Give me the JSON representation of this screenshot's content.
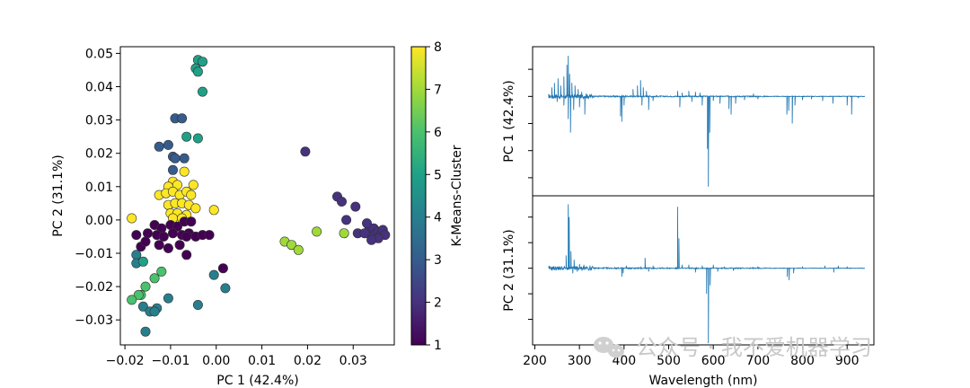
{
  "chart_data": [
    {
      "type": "scatter",
      "title": "",
      "xlabel": "PC 1 (42.4%)",
      "ylabel": "PC 2 (31.1%)",
      "xlim": [
        -0.021,
        0.039
      ],
      "ylim": [
        -0.0375,
        0.052
      ],
      "xticks": [
        -0.02,
        -0.01,
        0.0,
        0.01,
        0.02,
        0.03
      ],
      "xtick_labels": [
        "−0.02",
        "−0.01",
        "0.00",
        "0.01",
        "0.02",
        "0.03"
      ],
      "yticks": [
        -0.03,
        -0.02,
        -0.01,
        0.0,
        0.01,
        0.02,
        0.03,
        0.04,
        0.05
      ],
      "ytick_labels": [
        "−0.03",
        "−0.02",
        "−0.01",
        "0.00",
        "0.01",
        "0.02",
        "0.03",
        "0.04",
        "0.05"
      ],
      "grid": false,
      "colorbar": {
        "label": "K-Means-Cluster",
        "range": [
          1,
          8
        ],
        "colormap": "viridis",
        "ticks": [
          1,
          2,
          3,
          4,
          5,
          6,
          7,
          8
        ],
        "tick_labels": [
          "1",
          "2",
          "3",
          "4",
          "5",
          "6",
          "7",
          "8"
        ]
      },
      "points": [
        {
          "x": -0.004,
          "y": 0.048,
          "c": 5
        },
        {
          "x": -0.003,
          "y": 0.0475,
          "c": 5
        },
        {
          "x": -0.0045,
          "y": 0.0455,
          "c": 5
        },
        {
          "x": -0.004,
          "y": 0.0445,
          "c": 5
        },
        {
          "x": -0.003,
          "y": 0.0385,
          "c": 5
        },
        {
          "x": -0.0065,
          "y": 0.025,
          "c": 5
        },
        {
          "x": -0.004,
          "y": 0.0245,
          "c": 5
        },
        {
          "x": -0.009,
          "y": 0.0305,
          "c": 3
        },
        {
          "x": -0.0075,
          "y": 0.0305,
          "c": 3
        },
        {
          "x": -0.0125,
          "y": 0.022,
          "c": 3
        },
        {
          "x": -0.0105,
          "y": 0.0225,
          "c": 3
        },
        {
          "x": -0.0095,
          "y": 0.019,
          "c": 3
        },
        {
          "x": -0.009,
          "y": 0.0185,
          "c": 3
        },
        {
          "x": -0.007,
          "y": 0.0185,
          "c": 3
        },
        {
          "x": -0.0095,
          "y": 0.015,
          "c": 3
        },
        {
          "x": -0.0095,
          "y": 0.0115,
          "c": 8
        },
        {
          "x": -0.007,
          "y": 0.0145,
          "c": 8
        },
        {
          "x": -0.0105,
          "y": 0.01,
          "c": 8
        },
        {
          "x": -0.0085,
          "y": 0.0105,
          "c": 8
        },
        {
          "x": -0.005,
          "y": 0.0105,
          "c": 8
        },
        {
          "x": -0.0125,
          "y": 0.0075,
          "c": 8
        },
        {
          "x": -0.011,
          "y": 0.008,
          "c": 8
        },
        {
          "x": -0.0095,
          "y": 0.0085,
          "c": 8
        },
        {
          "x": -0.008,
          "y": 0.0075,
          "c": 8
        },
        {
          "x": -0.0065,
          "y": 0.0085,
          "c": 8
        },
        {
          "x": -0.0055,
          "y": 0.0075,
          "c": 8
        },
        {
          "x": -0.0105,
          "y": 0.0045,
          "c": 8
        },
        {
          "x": -0.009,
          "y": 0.005,
          "c": 8
        },
        {
          "x": -0.0075,
          "y": 0.005,
          "c": 8
        },
        {
          "x": -0.006,
          "y": 0.0045,
          "c": 8
        },
        {
          "x": -0.0045,
          "y": 0.0035,
          "c": 8
        },
        {
          "x": -0.01,
          "y": 0.002,
          "c": 8
        },
        {
          "x": -0.0085,
          "y": 0.002,
          "c": 8
        },
        {
          "x": -0.0065,
          "y": 0.0015,
          "c": 8
        },
        {
          "x": -0.0095,
          "y": 0.0005,
          "c": 8
        },
        {
          "x": -0.0075,
          "y": 0.0005,
          "c": 8
        },
        {
          "x": -0.0005,
          "y": 0.003,
          "c": 8
        },
        {
          "x": -0.0185,
          "y": 0.0005,
          "c": 8
        },
        {
          "x": -0.0135,
          "y": -0.0015,
          "c": 1
        },
        {
          "x": -0.012,
          "y": -0.0025,
          "c": 1
        },
        {
          "x": -0.01,
          "y": -0.0015,
          "c": 1
        },
        {
          "x": -0.0085,
          "y": -0.002,
          "c": 1
        },
        {
          "x": -0.007,
          "y": -0.0005,
          "c": 1
        },
        {
          "x": -0.0055,
          "y": -0.0005,
          "c": 1
        },
        {
          "x": -0.015,
          "y": -0.004,
          "c": 1
        },
        {
          "x": -0.013,
          "y": -0.0045,
          "c": 1
        },
        {
          "x": -0.0115,
          "y": -0.005,
          "c": 1
        },
        {
          "x": -0.0095,
          "y": -0.004,
          "c": 1
        },
        {
          "x": -0.0075,
          "y": -0.0045,
          "c": 1
        },
        {
          "x": -0.006,
          "y": -0.004,
          "c": 1
        },
        {
          "x": -0.0045,
          "y": -0.005,
          "c": 1
        },
        {
          "x": -0.003,
          "y": -0.0045,
          "c": 1
        },
        {
          "x": -0.0015,
          "y": -0.0045,
          "c": 1
        },
        {
          "x": -0.0065,
          "y": -0.005,
          "c": 1
        },
        {
          "x": -0.0175,
          "y": -0.0045,
          "c": 1
        },
        {
          "x": -0.0165,
          "y": -0.008,
          "c": 1
        },
        {
          "x": -0.0155,
          "y": -0.0065,
          "c": 1
        },
        {
          "x": -0.0125,
          "y": -0.0075,
          "c": 1
        },
        {
          "x": -0.0105,
          "y": -0.0085,
          "c": 1
        },
        {
          "x": -0.008,
          "y": -0.0075,
          "c": 1
        },
        {
          "x": -0.0065,
          "y": -0.0105,
          "c": 1
        },
        {
          "x": 0.0015,
          "y": -0.0145,
          "c": 1
        },
        {
          "x": -0.0175,
          "y": -0.0105,
          "c": 4
        },
        {
          "x": -0.0175,
          "y": -0.013,
          "c": 4
        },
        {
          "x": -0.016,
          "y": -0.0125,
          "c": 5
        },
        {
          "x": -0.0005,
          "y": -0.0165,
          "c": 4
        },
        {
          "x": 0.002,
          "y": -0.0205,
          "c": 4
        },
        {
          "x": -0.004,
          "y": -0.0255,
          "c": 4
        },
        {
          "x": -0.0105,
          "y": -0.0235,
          "c": 4
        },
        {
          "x": -0.016,
          "y": -0.026,
          "c": 4
        },
        {
          "x": -0.0145,
          "y": -0.0275,
          "c": 4
        },
        {
          "x": -0.013,
          "y": -0.0265,
          "c": 4
        },
        {
          "x": -0.0135,
          "y": -0.0275,
          "c": 4
        },
        {
          "x": -0.0155,
          "y": -0.0335,
          "c": 4
        },
        {
          "x": -0.0135,
          "y": -0.0175,
          "c": 6
        },
        {
          "x": -0.012,
          "y": -0.0155,
          "c": 6
        },
        {
          "x": -0.0155,
          "y": -0.02,
          "c": 6
        },
        {
          "x": -0.0165,
          "y": -0.0225,
          "c": 6
        },
        {
          "x": -0.017,
          "y": -0.0225,
          "c": 6
        },
        {
          "x": -0.0185,
          "y": -0.024,
          "c": 6
        },
        {
          "x": 0.015,
          "y": -0.0065,
          "c": 7
        },
        {
          "x": 0.0165,
          "y": -0.0075,
          "c": 7
        },
        {
          "x": 0.018,
          "y": -0.009,
          "c": 7
        },
        {
          "x": 0.022,
          "y": -0.0035,
          "c": 7
        },
        {
          "x": 0.028,
          "y": -0.004,
          "c": 7
        },
        {
          "x": 0.0195,
          "y": 0.0205,
          "c": 2
        },
        {
          "x": 0.0265,
          "y": 0.007,
          "c": 2
        },
        {
          "x": 0.0275,
          "y": 0.0055,
          "c": 2
        },
        {
          "x": 0.0305,
          "y": 0.004,
          "c": 2
        },
        {
          "x": 0.0285,
          "y": 0.0,
          "c": 2
        },
        {
          "x": 0.031,
          "y": -0.004,
          "c": 2
        },
        {
          "x": 0.0335,
          "y": -0.003,
          "c": 2
        },
        {
          "x": 0.034,
          "y": -0.005,
          "c": 2
        },
        {
          "x": 0.0345,
          "y": -0.0025,
          "c": 2
        },
        {
          "x": 0.035,
          "y": -0.004,
          "c": 2
        },
        {
          "x": 0.0355,
          "y": -0.0035,
          "c": 2
        },
        {
          "x": 0.036,
          "y": -0.0045,
          "c": 2
        },
        {
          "x": 0.0365,
          "y": -0.003,
          "c": 2
        },
        {
          "x": 0.037,
          "y": -0.0045,
          "c": 2
        },
        {
          "x": 0.0355,
          "y": -0.0055,
          "c": 2
        },
        {
          "x": 0.034,
          "y": -0.006,
          "c": 2
        },
        {
          "x": 0.0325,
          "y": -0.004,
          "c": 2
        },
        {
          "x": 0.033,
          "y": -0.001,
          "c": 2
        }
      ]
    },
    {
      "type": "line",
      "title": "",
      "color": "#1f77b4",
      "xlabel": "Wavelength (nm)",
      "xlim": [
        195,
        960
      ],
      "xticks": [
        200,
        300,
        400,
        500,
        600,
        700,
        800,
        900
      ],
      "xtick_labels": [
        "200",
        "300",
        "400",
        "500",
        "600",
        "700",
        "800",
        "900"
      ],
      "series": [
        {
          "ylabel": "PC 1 (42.4%)",
          "ylim": [
            -0.11,
            0.055
          ],
          "yticks": [
            -0.09,
            -0.06,
            -0.03,
            0.0,
            0.03
          ],
          "baseline": 0.0,
          "x_start": 230,
          "x_end": 940,
          "peaks": [
            {
              "x": 238,
              "y": 0.01
            },
            {
              "x": 244,
              "y": 0.015
            },
            {
              "x": 252,
              "y": 0.02
            },
            {
              "x": 258,
              "y": 0.012
            },
            {
              "x": 265,
              "y": 0.022
            },
            {
              "x": 272,
              "y": 0.035
            },
            {
              "x": 275,
              "y": 0.045
            },
            {
              "x": 278,
              "y": 0.025
            },
            {
              "x": 283,
              "y": 0.015
            },
            {
              "x": 290,
              "y": 0.012
            },
            {
              "x": 297,
              "y": 0.008
            },
            {
              "x": 305,
              "y": 0.005
            },
            {
              "x": 315,
              "y": 0.003
            },
            {
              "x": 280,
              "y": -0.04
            },
            {
              "x": 275,
              "y": -0.025
            },
            {
              "x": 287,
              "y": -0.015
            },
            {
              "x": 300,
              "y": -0.012
            },
            {
              "x": 312,
              "y": -0.02
            },
            {
              "x": 265,
              "y": -0.01
            },
            {
              "x": 250,
              "y": -0.006
            },
            {
              "x": 395,
              "y": -0.028
            },
            {
              "x": 392,
              "y": -0.022
            },
            {
              "x": 400,
              "y": -0.01
            },
            {
              "x": 420,
              "y": 0.008
            },
            {
              "x": 430,
              "y": 0.012
            },
            {
              "x": 437,
              "y": 0.018
            },
            {
              "x": 443,
              "y": 0.01
            },
            {
              "x": 450,
              "y": 0.006
            },
            {
              "x": 440,
              "y": -0.01
            },
            {
              "x": 455,
              "y": -0.015
            },
            {
              "x": 465,
              "y": -0.005
            },
            {
              "x": 520,
              "y": 0.006
            },
            {
              "x": 525,
              "y": -0.012
            },
            {
              "x": 530,
              "y": 0.004
            },
            {
              "x": 545,
              "y": 0.006
            },
            {
              "x": 552,
              "y": -0.006
            },
            {
              "x": 560,
              "y": 0.005
            },
            {
              "x": 570,
              "y": 0.004
            },
            {
              "x": 575,
              "y": -0.01
            },
            {
              "x": 587,
              "y": -0.058
            },
            {
              "x": 589,
              "y": -0.1
            },
            {
              "x": 592,
              "y": -0.04
            },
            {
              "x": 600,
              "y": -0.005
            },
            {
              "x": 615,
              "y": -0.008
            },
            {
              "x": 635,
              "y": -0.014
            },
            {
              "x": 640,
              "y": -0.02
            },
            {
              "x": 650,
              "y": -0.008
            },
            {
              "x": 670,
              "y": -0.004
            },
            {
              "x": 690,
              "y": 0.003
            },
            {
              "x": 700,
              "y": -0.003
            },
            {
              "x": 765,
              "y": -0.02
            },
            {
              "x": 769,
              "y": -0.016
            },
            {
              "x": 777,
              "y": -0.03
            },
            {
              "x": 783,
              "y": -0.01
            },
            {
              "x": 800,
              "y": -0.004
            },
            {
              "x": 820,
              "y": -0.003
            },
            {
              "x": 845,
              "y": -0.005
            },
            {
              "x": 868,
              "y": -0.008
            },
            {
              "x": 900,
              "y": -0.01
            },
            {
              "x": 910,
              "y": -0.02
            },
            {
              "x": 925,
              "y": -0.002
            }
          ]
        },
        {
          "ylabel": "PC 2 (31.1%)",
          "ylim": [
            -0.09,
            0.085
          ],
          "yticks": [
            -0.06,
            -0.03,
            0.0,
            0.03,
            0.06
          ],
          "baseline": 0.0,
          "x_start": 230,
          "x_end": 940,
          "peaks": [
            {
              "x": 275,
              "y": 0.075
            },
            {
              "x": 277,
              "y": 0.06
            },
            {
              "x": 270,
              "y": 0.015
            },
            {
              "x": 281,
              "y": 0.02
            },
            {
              "x": 288,
              "y": 0.01
            },
            {
              "x": 300,
              "y": 0.005
            },
            {
              "x": 310,
              "y": 0.004
            },
            {
              "x": 285,
              "y": -0.006
            },
            {
              "x": 295,
              "y": -0.004
            },
            {
              "x": 395,
              "y": -0.01
            },
            {
              "x": 398,
              "y": -0.006
            },
            {
              "x": 405,
              "y": 0.003
            },
            {
              "x": 438,
              "y": 0.002
            },
            {
              "x": 447,
              "y": 0.012
            },
            {
              "x": 455,
              "y": -0.004
            },
            {
              "x": 465,
              "y": 0.003
            },
            {
              "x": 520,
              "y": 0.072
            },
            {
              "x": 523,
              "y": 0.035
            },
            {
              "x": 530,
              "y": 0.004
            },
            {
              "x": 545,
              "y": 0.004
            },
            {
              "x": 560,
              "y": -0.005
            },
            {
              "x": 575,
              "y": 0.003
            },
            {
              "x": 585,
              "y": -0.03
            },
            {
              "x": 589,
              "y": -0.088
            },
            {
              "x": 593,
              "y": -0.02
            },
            {
              "x": 600,
              "y": 0.004
            },
            {
              "x": 610,
              "y": -0.004
            },
            {
              "x": 625,
              "y": 0.002
            },
            {
              "x": 645,
              "y": -0.003
            },
            {
              "x": 700,
              "y": 0.002
            },
            {
              "x": 766,
              "y": -0.01
            },
            {
              "x": 770,
              "y": -0.014
            },
            {
              "x": 780,
              "y": -0.006
            },
            {
              "x": 800,
              "y": 0.002
            },
            {
              "x": 850,
              "y": 0.003
            },
            {
              "x": 870,
              "y": -0.005
            },
            {
              "x": 880,
              "y": 0.003
            },
            {
              "x": 900,
              "y": 0.002
            }
          ]
        }
      ]
    }
  ],
  "watermark": {
    "icon": "wechat-icon",
    "text": "公众号 · 我不爱机器学习"
  }
}
